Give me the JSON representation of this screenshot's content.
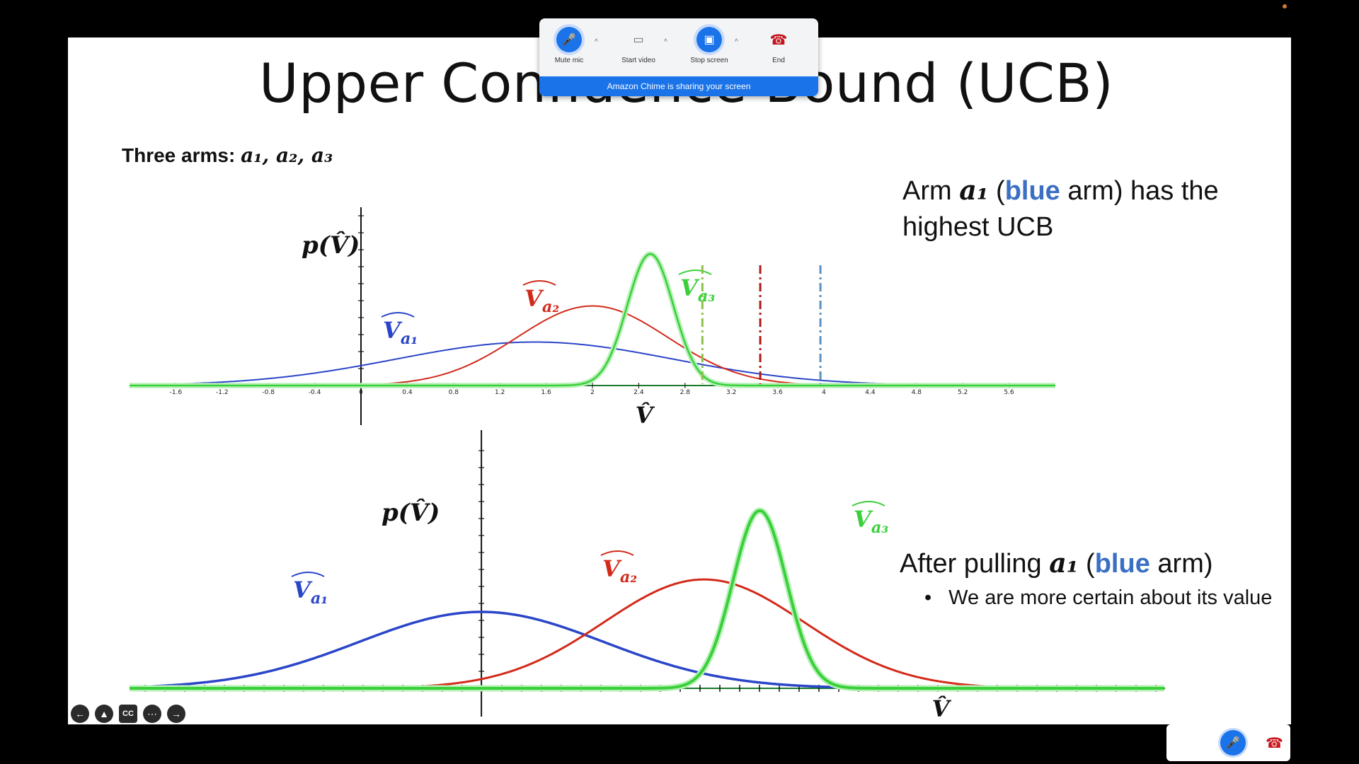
{
  "slide": {
    "title": "Upper Confidence Bound (UCB)",
    "arms_label_prefix": "Three arms: ",
    "arms_math": "a₁, a₂, a₃",
    "note_top": {
      "prefix": "Arm ",
      "arm": "a₁",
      "paren_open": " (",
      "highlight": "blue",
      "rest": " arm) has the",
      "line2": "highest UCB"
    },
    "note_bottom": {
      "prefix": "After pulling ",
      "arm": "a₁",
      "paren_open": " (",
      "highlight": "blue",
      "rest": " arm)"
    },
    "bullet": "We are more certain about its value"
  },
  "chart_data": [
    {
      "type": "line",
      "ylabel": "p(V̂)",
      "xlabel": "V̂",
      "x_ticks": [
        -1.6,
        -1.2,
        -0.8,
        -0.4,
        0,
        0.4,
        0.8,
        1.2,
        1.6,
        2,
        2.4,
        2.8,
        3.2,
        3.6,
        4,
        4.4,
        4.8,
        5.2,
        5.6
      ],
      "xlim": [
        -2.0,
        6.0
      ],
      "series": [
        {
          "name": "V̂a₁",
          "color": "#2a45c8",
          "mean": 1.5,
          "sd": 1.2,
          "peak": 0.205
        },
        {
          "name": "V̂a₂",
          "color": "#d22a1a",
          "mean": 2.0,
          "sd": 0.65,
          "peak": 0.375
        },
        {
          "name": "V̂a₃",
          "color": "#39d039",
          "mean": 2.5,
          "sd": 0.2,
          "peak": 0.62
        }
      ],
      "ucb_lines": [
        {
          "x": 2.95,
          "color": "#8dc04a"
        },
        {
          "x": 3.45,
          "color": "#b01818"
        },
        {
          "x": 3.97,
          "color": "#5a90c0"
        }
      ]
    },
    {
      "type": "line",
      "ylabel": "p(V̂)",
      "xlabel": "V̂",
      "xlim": [
        -1.58,
        3.07
      ],
      "series": [
        {
          "name": "V̂a₁",
          "color": "#2a45c8",
          "mean": 0.0,
          "sd": 0.55,
          "peak": 0.4
        },
        {
          "name": "V̂a₂",
          "color": "#d22a1a",
          "mean": 1.0,
          "sd": 0.45,
          "peak": 0.57
        },
        {
          "name": "V̂a₃",
          "color": "#39d039",
          "mean": 1.25,
          "sd": 0.12,
          "peak": 0.93
        }
      ]
    }
  ],
  "chime": {
    "mute_label": "Mute mic",
    "video_label": "Start video",
    "stop_label": "Stop screen",
    "end_label": "End",
    "banner": "Amazon Chime is sharing your screen"
  },
  "nav": {
    "cc_label": "CC",
    "more_label": "⋯"
  }
}
